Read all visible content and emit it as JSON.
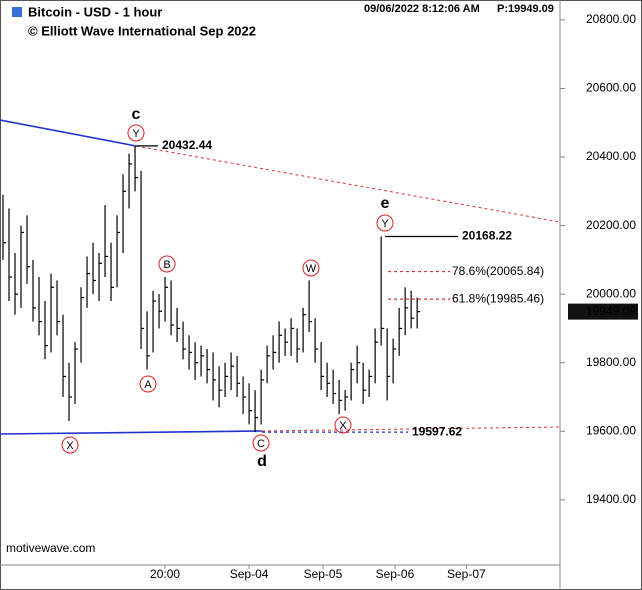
{
  "chart_data": {
    "type": "hlc",
    "title": "Bitcoin - USD - 1 hour",
    "subtitle": "© Elliott Wave International Sep 2022",
    "timestamp": "09/06/2022 8:12:06 AM",
    "price_label": "P:19949.09",
    "watermark": "motivewave.com",
    "color": "#000000",
    "high": [
      20290,
      20250,
      20120,
      20200,
      20230,
      20100,
      20050,
      19980,
      20060,
      20040,
      19940,
      19800,
      19860,
      20020,
      20110,
      20150,
      20120,
      20260,
      20150,
      20230,
      20350,
      20410,
      20432,
      20360,
      19950,
      20010,
      20000,
      20050,
      20040,
      19960,
      19920,
      19880,
      19860,
      19850,
      19840,
      19830,
      19790,
      19800,
      19830,
      19820,
      19760,
      19740,
      19720,
      19780,
      19850,
      19880,
      19920,
      19900,
      19930,
      19900,
      19960,
      20040,
      19930,
      19860,
      19800,
      19780,
      19750,
      19720,
      19800,
      19850,
      19800,
      19780,
      19900,
      20168.22,
      19900,
      19870,
      19960,
      20020,
      20010,
      19990
    ],
    "low": [
      20100,
      19980,
      19940,
      19960,
      20030,
      19920,
      19880,
      19810,
      19830,
      19880,
      19700,
      19630,
      19680,
      19800,
      19960,
      20000,
      19980,
      20050,
      19980,
      20020,
      20120,
      20250,
      20300,
      19840,
      19780,
      19830,
      19900,
      19920,
      19880,
      19860,
      19810,
      19780,
      19750,
      19760,
      19740,
      19690,
      19670,
      19700,
      19720,
      19700,
      19650,
      19620,
      19597.62,
      19620,
      19740,
      19780,
      19800,
      19820,
      19820,
      19800,
      19830,
      19890,
      19800,
      19720,
      19700,
      19680,
      19650,
      19660,
      19690,
      19740,
      19680,
      19700,
      19740,
      19850,
      19690,
      19740,
      19820,
      19880,
      19900,
      19900
    ],
    "close": [
      20150,
      20050,
      20000,
      20180,
      20080,
      19960,
      19920,
      19850,
      20020,
      19920,
      19760,
      19700,
      19840,
      19990,
      20060,
      20040,
      20090,
      20110,
      20020,
      20180,
      20300,
      20380,
      20340,
      19900,
      19820,
      19980,
      19950,
      20020,
      19910,
      19900,
      19840,
      19830,
      19800,
      19820,
      19780,
      19750,
      19720,
      19760,
      19790,
      19740,
      19700,
      19660,
      19640,
      19750,
      19820,
      19830,
      19880,
      19860,
      19900,
      19840,
      19940,
      19920,
      19840,
      19760,
      19740,
      19710,
      19690,
      19700,
      19780,
      19800,
      19720,
      19760,
      19860,
      19900,
      19760,
      19840,
      19900,
      19960,
      19930,
      19949.09
    ],
    "xlim": [
      -0.5,
      92.8
    ],
    "xticks": [
      {
        "value": 27,
        "label": "20:00"
      },
      {
        "value": 41,
        "label": "Sep-04"
      },
      {
        "value": 53.3,
        "label": "Sep-05"
      },
      {
        "value": 65.3,
        "label": "Sep-06"
      },
      {
        "value": 77.2,
        "label": "Sep-07"
      }
    ],
    "ylim": [
      19210,
      20858
    ],
    "yticks": [
      {
        "value": 19400,
        "label": "19400.00"
      },
      {
        "value": 19600,
        "label": "19600.00"
      },
      {
        "value": 19800,
        "label": "19800.00"
      },
      {
        "value": 20000,
        "label": "20000.00"
      },
      {
        "value": 20200,
        "label": "20200.00"
      },
      {
        "value": 20400,
        "label": "20400.00"
      },
      {
        "value": 20600,
        "label": "20600.00"
      },
      {
        "value": 20800,
        "label": "20800.00"
      }
    ],
    "levels": [
      20432.44,
      20168.22,
      {
        "value": 20065.84,
        "label": "78.6%(20065.84)"
      },
      {
        "value": 19985.46,
        "label": "61.8%(19985.46)"
      },
      19597.62
    ],
    "wave_labels": [
      "c",
      "Y",
      "B",
      "A",
      "X",
      "C",
      "d",
      "W",
      "X",
      "Y",
      "e"
    ]
  }
}
